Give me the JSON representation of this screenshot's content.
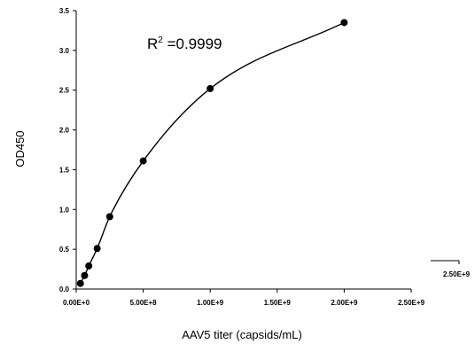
{
  "chart_data": {
    "type": "scatter",
    "title": "",
    "xlabel": "AAV5 titer (capsids/mL)",
    "ylabel": "OD450",
    "xlim": [
      0,
      2500000000
    ],
    "ylim": [
      0,
      3.5
    ],
    "x_tick_labels": [
      "0.00E+0",
      "5.00E+8",
      "1.00E+9",
      "1.50E+9",
      "2.00E+9",
      "2.50E+9"
    ],
    "x_ticks": [
      0,
      500000000,
      1000000000,
      1500000000,
      2000000000,
      2500000000
    ],
    "y_tick_labels": [
      "0.0",
      "0.5",
      "1.0",
      "1.5",
      "2.0",
      "2.5",
      "3.0",
      "3.5"
    ],
    "y_ticks": [
      0,
      0.5,
      1.0,
      1.5,
      2.0,
      2.5,
      3.0,
      3.5
    ],
    "annotation": {
      "base": "R",
      "sup": "2",
      "text": " =0.9999"
    },
    "series": [
      {
        "points": [
          {
            "x": 31250000,
            "y": 0.07
          },
          {
            "x": 62500000,
            "y": 0.17
          },
          {
            "x": 93750000,
            "y": 0.29
          },
          {
            "x": 156250000,
            "y": 0.51
          },
          {
            "x": 250000000,
            "y": 0.91
          },
          {
            "x": 500000000,
            "y": 1.61
          },
          {
            "x": 1000000000,
            "y": 2.52
          },
          {
            "x": 2000000000,
            "y": 3.35
          }
        ],
        "fit_curve": true
      }
    ],
    "grid": false,
    "inset": {
      "tick_label": "2.50E+9"
    },
    "colors": {
      "marker": "#000000",
      "line": "#000000"
    }
  }
}
